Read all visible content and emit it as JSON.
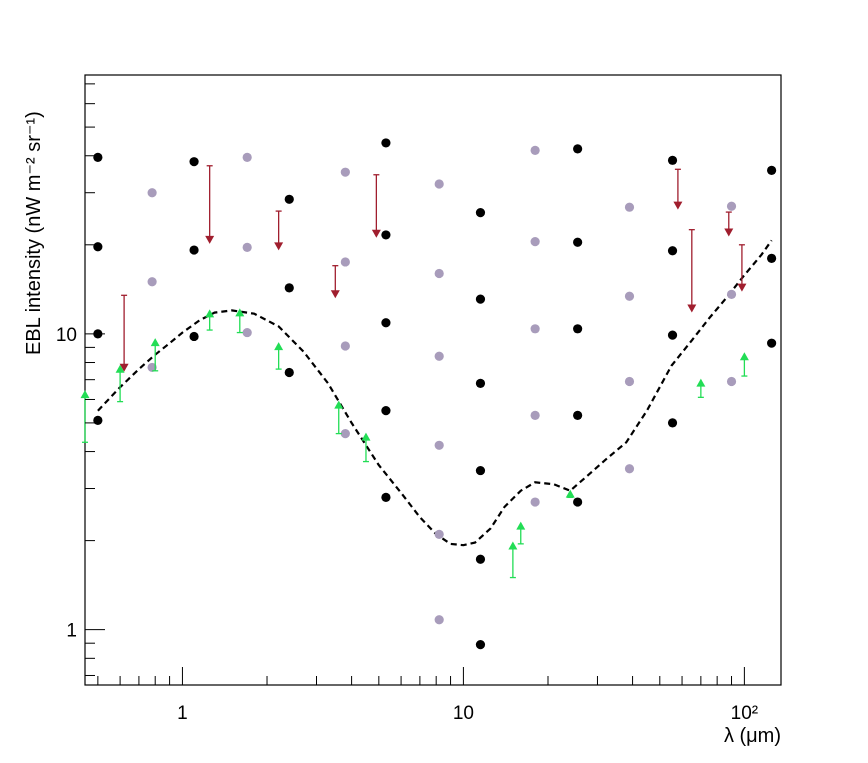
{
  "chart_data": {
    "type": "scatter",
    "title": "",
    "xlabel": "λ (μm)",
    "ylabel": "EBL intensity (nW m⁻² sr⁻¹)",
    "x_scale": "log",
    "y_scale": "log",
    "xlim": [
      0.45,
      135
    ],
    "ylim": [
      0.65,
      75
    ],
    "x_ticks": [
      {
        "value": 1,
        "label": "1"
      },
      {
        "value": 10,
        "label": "10"
      },
      {
        "value": 100,
        "label": "10²"
      }
    ],
    "y_ticks": [
      {
        "value": 1,
        "label": "1"
      },
      {
        "value": 10,
        "label": "10"
      }
    ],
    "grid": false,
    "legend": "none",
    "colors": {
      "black_points": "#000000",
      "grey_points": "#a89cbb",
      "upper_limits": "#a01e2e",
      "lower_limits": "#22dd55",
      "model_curve": "#000000"
    },
    "series": [
      {
        "marker": "circle",
        "color": "#000000",
        "points": [
          [
            0.5,
            39.5
          ],
          [
            0.5,
            19.7
          ],
          [
            0.5,
            10.0
          ],
          [
            0.5,
            5.1
          ],
          [
            1.1,
            38.2
          ],
          [
            1.1,
            19.2
          ],
          [
            1.1,
            9.8
          ],
          [
            2.4,
            28.5
          ],
          [
            2.4,
            14.3
          ],
          [
            2.4,
            7.4
          ],
          [
            5.3,
            44.2
          ],
          [
            5.3,
            21.6
          ],
          [
            5.3,
            10.9
          ],
          [
            5.3,
            5.5
          ],
          [
            5.3,
            2.8
          ],
          [
            11.5,
            25.7
          ],
          [
            11.5,
            13.1
          ],
          [
            11.5,
            6.8
          ],
          [
            11.5,
            3.45
          ],
          [
            11.5,
            1.73
          ],
          [
            11.5,
            0.89
          ],
          [
            25.5,
            42.2
          ],
          [
            25.5,
            20.4
          ],
          [
            25.5,
            10.4
          ],
          [
            25.5,
            5.3
          ],
          [
            25.5,
            2.7
          ],
          [
            55.5,
            38.6
          ],
          [
            55.5,
            19.1
          ],
          [
            55.5,
            9.9
          ],
          [
            55.5,
            5.0
          ],
          [
            125,
            35.7
          ],
          [
            125,
            18.0
          ],
          [
            125,
            9.3
          ]
        ]
      },
      {
        "marker": "circle",
        "color": "#a89cbb",
        "points": [
          [
            0.78,
            30.0
          ],
          [
            0.78,
            15.0
          ],
          [
            0.78,
            7.7
          ],
          [
            1.7,
            39.5
          ],
          [
            1.7,
            19.6
          ],
          [
            1.7,
            10.1
          ],
          [
            3.8,
            35.2
          ],
          [
            3.8,
            17.5
          ],
          [
            3.8,
            9.1
          ],
          [
            3.8,
            4.6
          ],
          [
            8.2,
            32.1
          ],
          [
            8.2,
            16.0
          ],
          [
            8.2,
            8.4
          ],
          [
            8.2,
            4.2
          ],
          [
            8.2,
            2.1
          ],
          [
            8.2,
            1.08
          ],
          [
            18.0,
            41.7
          ],
          [
            18.0,
            20.5
          ],
          [
            18.0,
            10.4
          ],
          [
            18.0,
            5.3
          ],
          [
            18.0,
            2.7
          ],
          [
            39.0,
            26.8
          ],
          [
            39.0,
            13.4
          ],
          [
            39.0,
            6.9
          ],
          [
            39.0,
            3.5
          ],
          [
            90.0,
            27.0
          ],
          [
            90.0,
            13.6
          ],
          [
            90.0,
            6.9
          ]
        ]
      },
      {
        "marker": "arrow-down",
        "color": "#a01e2e",
        "points": [
          [
            0.62,
            13.5,
            7.5
          ],
          [
            1.25,
            37.0,
            20.3
          ],
          [
            2.2,
            26.0,
            19.3
          ],
          [
            3.5,
            17.0,
            13.3
          ],
          [
            4.9,
            34.5,
            21.3
          ],
          [
            58.0,
            36.0,
            26.5
          ],
          [
            65.0,
            22.5,
            11.9
          ],
          [
            88.0,
            25.8,
            21.5
          ],
          [
            98.0,
            20.0,
            14.0
          ]
        ]
      },
      {
        "marker": "arrow-up",
        "color": "#22dd55",
        "points": [
          [
            0.45,
            4.3,
            6.4
          ],
          [
            0.6,
            5.9,
            7.8
          ],
          [
            0.8,
            7.5,
            9.6
          ],
          [
            1.25,
            10.3,
            12.0
          ],
          [
            1.6,
            10.1,
            12.1
          ],
          [
            2.2,
            7.6,
            9.3
          ],
          [
            3.6,
            4.6,
            5.9
          ],
          [
            4.5,
            3.7,
            4.6
          ],
          [
            15.0,
            1.5,
            1.97
          ],
          [
            16.0,
            1.95,
            2.3
          ],
          [
            24.0,
            2.8,
            2.95
          ],
          [
            70.0,
            6.1,
            7.0
          ],
          [
            100.0,
            7.2,
            8.6
          ]
        ]
      },
      {
        "marker": "dashed-line",
        "color": "#000000",
        "points": [
          [
            0.5,
            5.5
          ],
          [
            0.6,
            6.6
          ],
          [
            0.7,
            7.6
          ],
          [
            0.8,
            8.5
          ],
          [
            0.9,
            9.3
          ],
          [
            1.0,
            10.1
          ],
          [
            1.15,
            11.1
          ],
          [
            1.3,
            11.8
          ],
          [
            1.5,
            12.0
          ],
          [
            1.8,
            11.7
          ],
          [
            2.2,
            10.6
          ],
          [
            2.7,
            8.7
          ],
          [
            3.3,
            6.8
          ],
          [
            4.0,
            5.0
          ],
          [
            5.0,
            3.6
          ],
          [
            6.0,
            2.9
          ],
          [
            7.0,
            2.4
          ],
          [
            8.0,
            2.1
          ],
          [
            9.0,
            1.95
          ],
          [
            10.0,
            1.93
          ],
          [
            11.0,
            1.97
          ],
          [
            12.5,
            2.2
          ],
          [
            14.0,
            2.6
          ],
          [
            16.0,
            2.95
          ],
          [
            18.0,
            3.15
          ],
          [
            21.0,
            3.1
          ],
          [
            24.0,
            2.95
          ],
          [
            27.0,
            3.25
          ],
          [
            32.0,
            3.75
          ],
          [
            38.0,
            4.3
          ],
          [
            45.0,
            5.5
          ],
          [
            55.0,
            7.8
          ],
          [
            65.0,
            9.5
          ],
          [
            75.0,
            11.3
          ],
          [
            85.0,
            13.0
          ],
          [
            100.0,
            15.8
          ],
          [
            115.0,
            18.5
          ],
          [
            125.0,
            20.7
          ]
        ]
      }
    ]
  }
}
